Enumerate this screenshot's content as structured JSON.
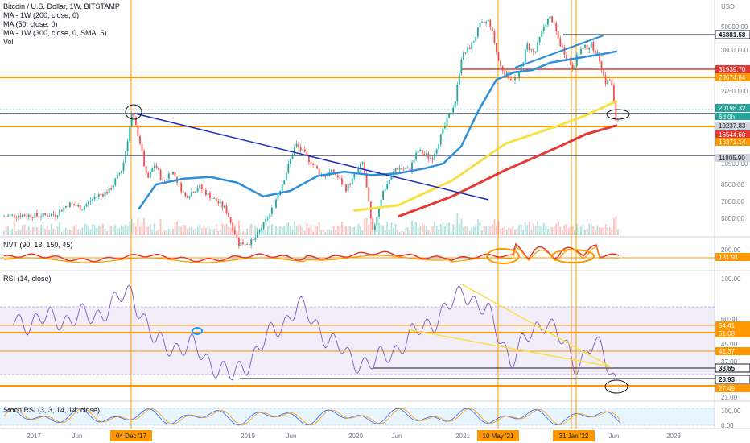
{
  "header": {
    "title": "Bitcoin / U.S. Dollar, 1W, BITSTAMP",
    "indicators": [
      "MA - 1W (200, close, 0)",
      "MA (50, close, 0)",
      "MA - 1W (300, close, 0, SMA, 5)",
      "Vol"
    ],
    "currency": "USD"
  },
  "panes": {
    "nvt_title": "NVT (90, 13, 150, 45)",
    "rsi_title": "RSI (14, close)",
    "stoch_title": "Stoch RSI (3, 3, 14, 14, close)"
  },
  "colors": {
    "up": "#26a69a",
    "down": "#ef5350",
    "ma200": "#f8e047",
    "ma50": "#2f8fd8",
    "ma300": "#e53935",
    "orange": "#ff9800",
    "rsi": "#7e57c2",
    "trend": "#1a2db5"
  },
  "chart_data": [
    {
      "type": "line",
      "name": "price",
      "scale": "log",
      "x": [
        "2016-10-01",
        "2016-12-01",
        "2017-02-01",
        "2017-04-01",
        "2017-05-15",
        "2017-07-01",
        "2017-08-15",
        "2017-10-01",
        "2017-11-15",
        "2017-12-17",
        "2018-01-10",
        "2018-02-06",
        "2018-03-05",
        "2018-04-01",
        "2018-05-01",
        "2018-06-15",
        "2018-08-01",
        "2018-09-15",
        "2018-11-01",
        "2018-12-15",
        "2019-02-01",
        "2019-04-01",
        "2019-05-15",
        "2019-06-26",
        "2019-08-01",
        "2019-09-25",
        "2019-11-01",
        "2019-12-15",
        "2020-02-10",
        "2020-03-13",
        "2020-04-15",
        "2020-06-01",
        "2020-07-15",
        "2020-08-15",
        "2020-10-01",
        "2020-11-15",
        "2020-12-20",
        "2021-01-08",
        "2021-02-15",
        "2021-03-13",
        "2021-04-14",
        "2021-05-19",
        "2021-06-20",
        "2021-07-20",
        "2021-08-20",
        "2021-09-15",
        "2021-10-20",
        "2021-11-10",
        "2021-12-10",
        "2022-01-22",
        "2022-02-15",
        "2022-03-28",
        "2022-04-25",
        "2022-05-12",
        "2022-06-01",
        "2022-06-18"
      ],
      "y": [
        5000,
        5100,
        5050,
        5150,
        5900,
        5600,
        6500,
        7000,
        9500,
        19237,
        14000,
        8000,
        10000,
        7800,
        9200,
        6500,
        7400,
        6400,
        5500,
        3500,
        3600,
        5200,
        8000,
        12900,
        11000,
        8500,
        9000,
        7200,
        10200,
        4000,
        6800,
        9500,
        9200,
        11800,
        10700,
        16500,
        23000,
        40000,
        48000,
        61000,
        64800,
        36000,
        31000,
        30000,
        47000,
        42000,
        63000,
        68000,
        48000,
        35000,
        44000,
        47500,
        38500,
        29000,
        30000,
        17700
      ]
    },
    {
      "type": "line",
      "name": "MA (50, close, 0)",
      "x": [
        "2018-01-01",
        "2018-03-01",
        "2018-06-01",
        "2018-09-01",
        "2018-12-01",
        "2019-03-01",
        "2019-06-01",
        "2019-09-01",
        "2019-12-01",
        "2020-03-01",
        "2020-06-01",
        "2020-09-01",
        "2020-11-01",
        "2021-01-01",
        "2021-03-01",
        "2021-05-01",
        "2021-07-01",
        "2021-09-01",
        "2021-11-01",
        "2022-01-01",
        "2022-03-01",
        "2022-05-01",
        "2022-06-15"
      ],
      "y": [
        5500,
        7600,
        8200,
        8400,
        7800,
        6500,
        7000,
        8500,
        9000,
        8600,
        8800,
        9400,
        10000,
        12500,
        20000,
        30000,
        33000,
        34000,
        37500,
        39000,
        40500,
        42000,
        43500
      ]
    },
    {
      "type": "line",
      "name": "MA - 1W (200, close, 0)",
      "x": [
        "2020-01-01",
        "2020-06-01",
        "2020-12-01",
        "2021-06-01",
        "2021-12-01",
        "2022-03-01",
        "2022-05-01",
        "2022-06-15"
      ],
      "y": [
        5400,
        5800,
        8000,
        13000,
        16500,
        18800,
        21000,
        22700
      ]
    },
    {
      "type": "line",
      "name": "MA - 1W (300, close, 0, SMA, 5)",
      "x": [
        "2020-06-01",
        "2020-12-01",
        "2021-06-01",
        "2021-12-01",
        "2022-03-01",
        "2022-06-15"
      ],
      "y": [
        5000,
        6500,
        9200,
        12500,
        14700,
        16500
      ]
    },
    {
      "type": "line",
      "name": "RSI (14, close)",
      "x": [
        "2016-11-01",
        "2017-03-01",
        "2017-08-01",
        "2017-12-10",
        "2018-03-01",
        "2018-07-01",
        "2018-11-15",
        "2019-06-26",
        "2019-12-15",
        "2020-03-13",
        "2020-08-01",
        "2020-12-10",
        "2021-01-10",
        "2021-04-01",
        "2021-06-20",
        "2021-10-20",
        "2022-01-22",
        "2022-03-28",
        "2022-06-18"
      ],
      "y": [
        68,
        70,
        72,
        90,
        52,
        50,
        28,
        80,
        42,
        38,
        60,
        82,
        92,
        74,
        42,
        72,
        37,
        54,
        24
      ]
    }
  ],
  "axis": {
    "price_ticks": [
      "50000.00",
      "38000.00",
      "24500.00",
      "10500.00",
      "8500.00",
      "7000.00",
      "5800.00"
    ],
    "price_labels": [
      {
        "text": "46881.58",
        "color": "#131722",
        "bg": "#131722"
      },
      {
        "text": "31939.70",
        "color": "#e53935",
        "bg": "#e53935"
      },
      {
        "text": "28674.84",
        "color": "#ff9800",
        "bg": "#ff9800"
      },
      {
        "text": "20198.32",
        "color": "#26a69a",
        "bg": "#26a69a"
      },
      {
        "text": "6d 0h",
        "color": "#26a69a",
        "bg": "#26a69a"
      },
      {
        "text": "19237.83",
        "color": "#131722",
        "bg": "#9e9e9e"
      },
      {
        "text": "16544.60",
        "color": "#e53935",
        "bg": "#e53935"
      },
      {
        "text": "16371.14",
        "color": "#ff9800",
        "bg": "#ff9800"
      },
      {
        "text": "11805.90",
        "color": "#131722",
        "bg": "#9e9e9e"
      }
    ],
    "nvt_ticks": [
      "200.00"
    ],
    "nvt_label": "131.91",
    "rsi_ticks": [
      "100.00",
      "60.00",
      "45.00",
      "37.00",
      "21.00"
    ],
    "rsi_labels": [
      "54.41",
      "51.08",
      "41.37",
      "33.65",
      "28.93",
      "27.49"
    ],
    "stoch_ticks": [
      "100.00",
      "0.00"
    ],
    "x_ticks": [
      "2017",
      "Jun",
      "2019",
      "Jun",
      "2020",
      "Jun",
      "2021",
      "Jun",
      "2023",
      "Jun"
    ],
    "x_labels": [
      "04 Dec '17",
      "10 May '21",
      "31 Jan '22"
    ]
  }
}
